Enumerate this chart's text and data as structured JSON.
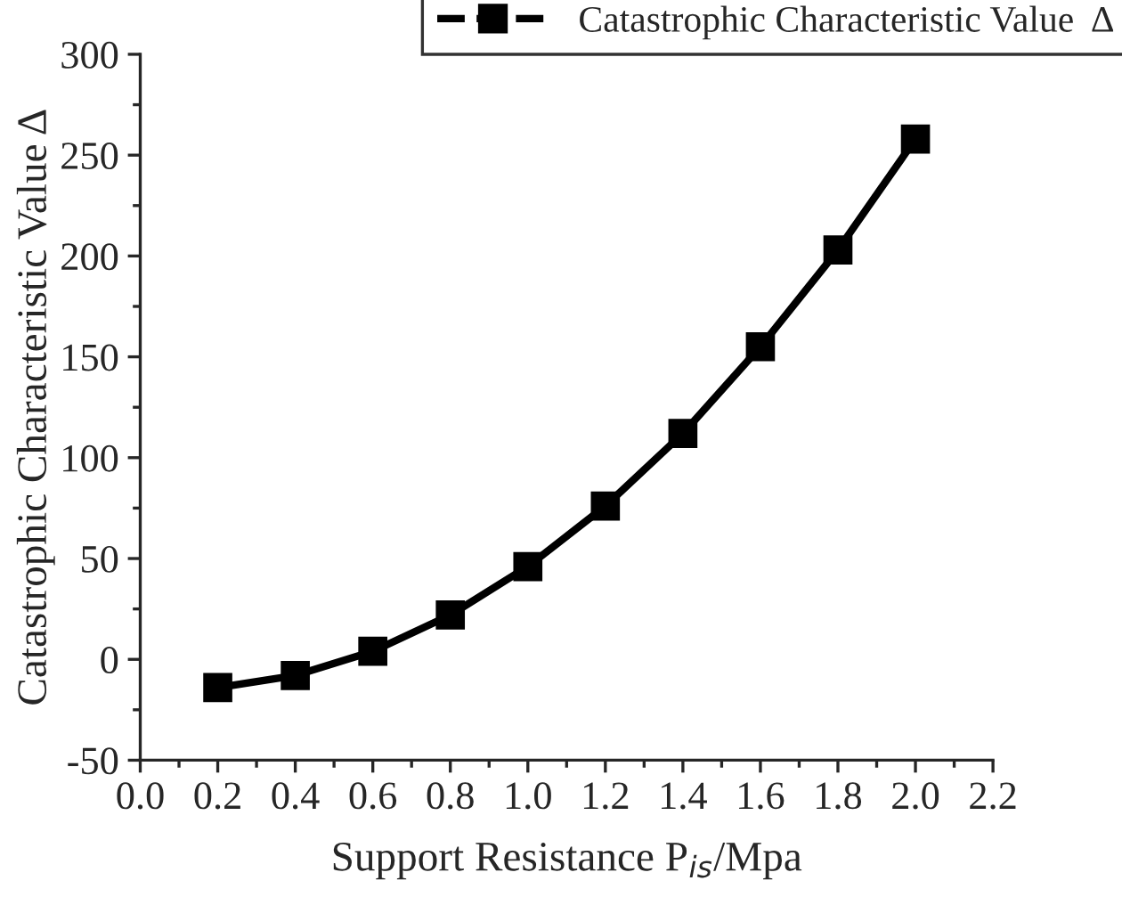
{
  "chart_data": {
    "type": "line",
    "xlabel": "Support Resistance P$_{is}$/Mpa",
    "ylabel": "Catastrophic Characteristic Value Δ",
    "x": [
      0.2,
      0.4,
      0.6,
      0.8,
      1.0,
      1.2,
      1.4,
      1.6,
      1.8,
      2.0
    ],
    "series": [
      {
        "name": "Catastrophic Characteristic Value  Δ",
        "color": "#000000",
        "values": [
          -14,
          -8,
          4,
          22,
          46,
          76,
          112,
          155,
          203,
          258
        ]
      }
    ],
    "xlim": [
      0.0,
      2.2
    ],
    "xticks": [
      {
        "value": 0.0,
        "label": "0.0"
      },
      0.2,
      0.4,
      0.6,
      0.8,
      {
        "value": 1.0,
        "label": "1.0"
      },
      1.2,
      1.4,
      1.6,
      1.8,
      {
        "value": 2.0,
        "label": "2.0"
      },
      2.2
    ],
    "ylim": [
      -50,
      300
    ],
    "yticks": [
      -50,
      0,
      50,
      100,
      150,
      200,
      250,
      300
    ],
    "marker": "square",
    "line_style": "solid",
    "legend": "top right",
    "grid": false
  }
}
